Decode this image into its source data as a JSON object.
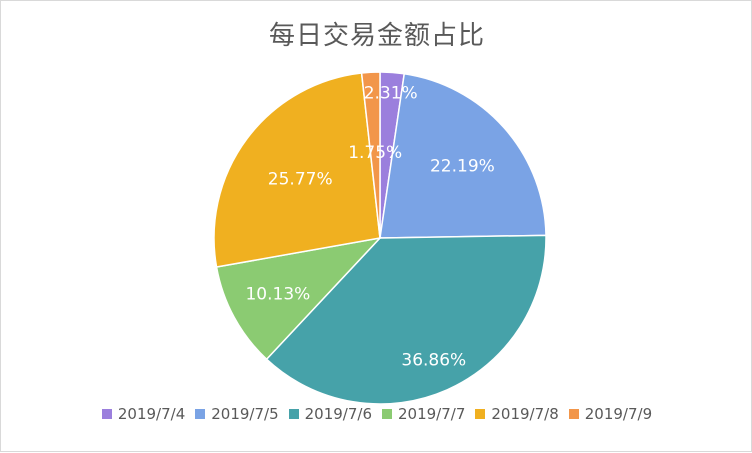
{
  "chart_data": {
    "type": "pie",
    "title": "每日交易金额占比",
    "categories": [
      "2019/7/4",
      "2019/7/5",
      "2019/7/6",
      "2019/7/7",
      "2019/7/8",
      "2019/7/9"
    ],
    "values": [
      2.31,
      22.19,
      36.86,
      10.13,
      25.77,
      1.75
    ],
    "labels": [
      "2.31%",
      "22.19%",
      "36.86%",
      "10.13%",
      "25.77%",
      "1.75%"
    ],
    "colors": [
      "#9b7fdd",
      "#7aa3e5",
      "#46a2a9",
      "#8bcb72",
      "#f0b020",
      "#f2964a"
    ],
    "legend_position": "bottom"
  }
}
